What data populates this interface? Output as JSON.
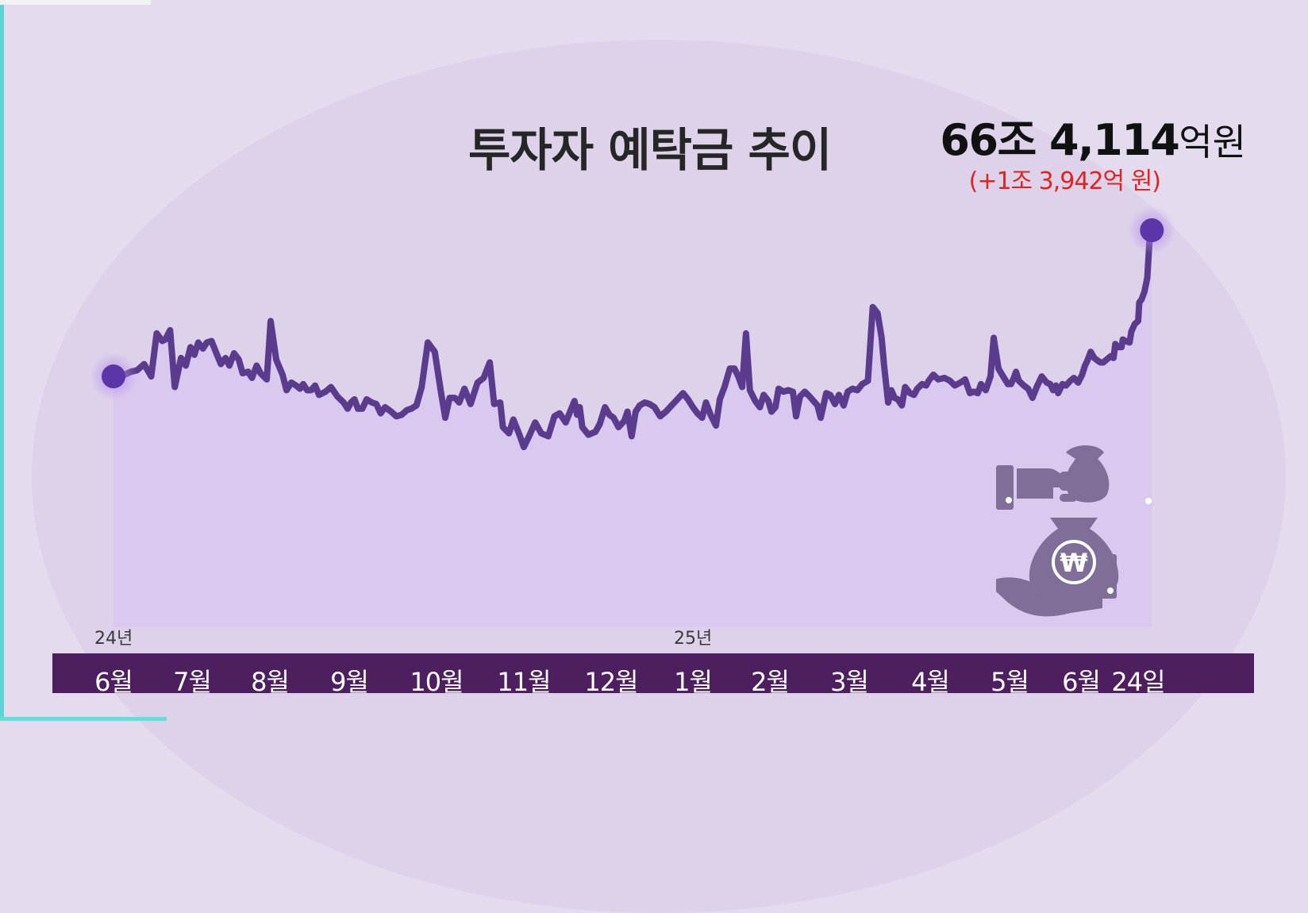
{
  "chart_data": {
    "type": "line",
    "title": "투자자 예탁금 추이",
    "latest_value": {
      "amount": "66조 4,114",
      "unit": "억원",
      "change": "(+1조 3,942억 원)"
    },
    "year_labels": [
      {
        "label": "24년",
        "month_index": 0
      },
      {
        "label": "25년",
        "month_index": 7
      }
    ],
    "months": [
      "6월",
      "7월",
      "8월",
      "9월",
      "10월",
      "11월",
      "12월",
      "1월",
      "2월",
      "3월",
      "4월",
      "5월",
      "6월",
      "24일"
    ],
    "ylim": [
      0,
      100
    ],
    "y_values_note": "relative level, unlabeled axis",
    "series": [
      {
        "values": [
          [
            0.0,
            40.6
          ],
          [
            0.06,
            40.0
          ],
          [
            0.14,
            41.3
          ],
          [
            0.22,
            42.5
          ],
          [
            0.3,
            43.1
          ],
          [
            0.39,
            45.6
          ],
          [
            0.48,
            40.6
          ],
          [
            0.55,
            58.1
          ],
          [
            0.62,
            55.0
          ],
          [
            0.66,
            55.6
          ],
          [
            0.72,
            59.4
          ],
          [
            0.78,
            36.3
          ],
          [
            0.86,
            48.1
          ],
          [
            0.92,
            45.0
          ],
          [
            0.98,
            52.5
          ],
          [
            1.03,
            49.4
          ],
          [
            1.08,
            54.4
          ],
          [
            1.14,
            51.9
          ],
          [
            1.19,
            54.4
          ],
          [
            1.25,
            55.0
          ],
          [
            1.32,
            49.4
          ],
          [
            1.37,
            45.6
          ],
          [
            1.43,
            48.1
          ],
          [
            1.48,
            45.0
          ],
          [
            1.54,
            50.0
          ],
          [
            1.6,
            47.5
          ],
          [
            1.65,
            41.9
          ],
          [
            1.72,
            42.5
          ],
          [
            1.77,
            40.0
          ],
          [
            1.83,
            45.0
          ],
          [
            1.88,
            41.9
          ],
          [
            1.96,
            39.4
          ],
          [
            2.01,
            63.1
          ],
          [
            2.08,
            47.5
          ],
          [
            2.16,
            41.3
          ],
          [
            2.21,
            35.0
          ],
          [
            2.27,
            38.1
          ],
          [
            2.33,
            36.9
          ],
          [
            2.38,
            35.6
          ],
          [
            2.42,
            37.5
          ],
          [
            2.47,
            35.0
          ],
          [
            2.52,
            35.0
          ],
          [
            2.57,
            36.9
          ],
          [
            2.62,
            33.1
          ],
          [
            2.7,
            34.4
          ],
          [
            2.77,
            36.3
          ],
          [
            2.85,
            32.5
          ],
          [
            2.93,
            30.0
          ],
          [
            2.98,
            27.5
          ],
          [
            3.02,
            30.0
          ],
          [
            3.06,
            31.3
          ],
          [
            3.1,
            27.5
          ],
          [
            3.15,
            27.5
          ],
          [
            3.2,
            31.3
          ],
          [
            3.26,
            30.0
          ],
          [
            3.31,
            29.4
          ],
          [
            3.36,
            25.6
          ],
          [
            3.41,
            28.1
          ],
          [
            3.48,
            26.3
          ],
          [
            3.54,
            24.4
          ],
          [
            3.6,
            25.0
          ],
          [
            3.66,
            26.9
          ],
          [
            3.71,
            27.5
          ],
          [
            3.77,
            28.8
          ],
          [
            3.83,
            36.3
          ],
          [
            3.9,
            54.4
          ],
          [
            3.98,
            50.6
          ],
          [
            4.05,
            34.4
          ],
          [
            4.1,
            23.8
          ],
          [
            4.15,
            31.9
          ],
          [
            4.21,
            31.9
          ],
          [
            4.26,
            30.0
          ],
          [
            4.32,
            35.6
          ],
          [
            4.39,
            29.4
          ],
          [
            4.47,
            38.1
          ],
          [
            4.54,
            40.0
          ],
          [
            4.61,
            46.3
          ],
          [
            4.66,
            29.4
          ],
          [
            4.73,
            30.0
          ],
          [
            4.76,
            20.0
          ],
          [
            4.83,
            17.5
          ],
          [
            4.88,
            23.1
          ],
          [
            4.95,
            16.9
          ],
          [
            5.0,
            11.9
          ],
          [
            5.06,
            16.3
          ],
          [
            5.13,
            21.9
          ],
          [
            5.2,
            17.5
          ],
          [
            5.28,
            16.3
          ],
          [
            5.35,
            24.4
          ],
          [
            5.41,
            25.6
          ],
          [
            5.48,
            21.9
          ],
          [
            5.53,
            26.3
          ],
          [
            5.58,
            30.6
          ],
          [
            5.61,
            25.0
          ],
          [
            5.64,
            28.1
          ],
          [
            5.67,
            20.0
          ],
          [
            5.74,
            16.9
          ],
          [
            5.82,
            18.1
          ],
          [
            5.87,
            21.3
          ],
          [
            5.93,
            28.1
          ],
          [
            5.98,
            25.0
          ],
          [
            6.03,
            23.8
          ],
          [
            6.09,
            20.0
          ],
          [
            6.16,
            22.5
          ],
          [
            6.2,
            26.3
          ],
          [
            6.25,
            16.3
          ],
          [
            6.3,
            26.3
          ],
          [
            6.35,
            28.8
          ],
          [
            6.41,
            30.0
          ],
          [
            6.47,
            29.4
          ],
          [
            6.53,
            28.1
          ],
          [
            6.6,
            24.4
          ],
          [
            6.67,
            26.3
          ],
          [
            6.74,
            28.8
          ],
          [
            6.81,
            31.3
          ],
          [
            6.88,
            33.8
          ],
          [
            6.94,
            31.3
          ],
          [
            7.0,
            28.1
          ],
          [
            7.06,
            25.6
          ],
          [
            7.12,
            23.8
          ],
          [
            7.17,
            30.0
          ],
          [
            7.23,
            25.0
          ],
          [
            7.3,
            20.6
          ],
          [
            7.35,
            31.3
          ],
          [
            7.41,
            36.3
          ],
          [
            7.48,
            43.8
          ],
          [
            7.54,
            43.8
          ],
          [
            7.59,
            40.6
          ],
          [
            7.64,
            36.3
          ],
          [
            7.69,
            58.1
          ],
          [
            7.74,
            35.0
          ],
          [
            7.81,
            30.6
          ],
          [
            7.87,
            28.1
          ],
          [
            7.92,
            33.1
          ],
          [
            7.98,
            30.6
          ],
          [
            8.02,
            26.3
          ],
          [
            8.07,
            28.1
          ],
          [
            8.11,
            35.6
          ],
          [
            8.17,
            34.4
          ],
          [
            8.23,
            35.0
          ],
          [
            8.29,
            34.4
          ],
          [
            8.33,
            24.4
          ],
          [
            8.38,
            32.5
          ],
          [
            8.44,
            34.4
          ],
          [
            8.5,
            32.5
          ],
          [
            8.55,
            30.6
          ],
          [
            8.6,
            28.8
          ],
          [
            8.64,
            23.8
          ],
          [
            8.71,
            33.8
          ],
          [
            8.76,
            33.1
          ],
          [
            8.82,
            29.4
          ],
          [
            8.87,
            33.1
          ],
          [
            8.93,
            28.8
          ],
          [
            8.98,
            34.4
          ],
          [
            9.04,
            35.6
          ],
          [
            9.1,
            35.0
          ],
          [
            9.16,
            37.5
          ],
          [
            9.23,
            38.8
          ],
          [
            9.29,
            68.8
          ],
          [
            9.35,
            66.3
          ],
          [
            9.4,
            56.3
          ],
          [
            9.43,
            45.0
          ],
          [
            9.48,
            30.0
          ],
          [
            9.52,
            35.0
          ],
          [
            9.56,
            31.9
          ],
          [
            9.6,
            31.3
          ],
          [
            9.65,
            28.8
          ],
          [
            9.69,
            36.3
          ],
          [
            9.75,
            33.8
          ],
          [
            9.8,
            33.1
          ],
          [
            9.84,
            35.6
          ],
          [
            9.9,
            37.5
          ],
          [
            9.95,
            36.9
          ],
          [
            9.98,
            38.8
          ],
          [
            10.04,
            41.3
          ],
          [
            10.1,
            39.4
          ],
          [
            10.18,
            40.0
          ],
          [
            10.25,
            38.8
          ],
          [
            10.31,
            36.9
          ],
          [
            10.38,
            38.1
          ],
          [
            10.44,
            39.4
          ],
          [
            10.5,
            33.8
          ],
          [
            10.55,
            34.4
          ],
          [
            10.6,
            33.8
          ],
          [
            10.64,
            37.5
          ],
          [
            10.7,
            35.0
          ],
          [
            10.76,
            40.6
          ],
          [
            10.8,
            56.3
          ],
          [
            10.86,
            43.8
          ],
          [
            10.93,
            40.0
          ],
          [
            10.98,
            37.5
          ],
          [
            11.02,
            37.5
          ],
          [
            11.06,
            40.0
          ],
          [
            11.09,
            42.5
          ],
          [
            11.13,
            38.8
          ],
          [
            11.2,
            36.9
          ],
          [
            11.26,
            35.6
          ],
          [
            11.32,
            31.9
          ],
          [
            11.38,
            36.3
          ],
          [
            11.45,
            40.6
          ],
          [
            11.52,
            38.1
          ],
          [
            11.57,
            37.5
          ],
          [
            11.61,
            35.0
          ],
          [
            11.65,
            36.9
          ],
          [
            11.68,
            33.8
          ],
          [
            11.74,
            37.5
          ],
          [
            11.79,
            36.9
          ],
          [
            11.85,
            38.8
          ],
          [
            11.9,
            40.0
          ],
          [
            11.96,
            38.1
          ],
          [
            12.02,
            41.3
          ],
          [
            12.07,
            45.0
          ],
          [
            12.11,
            46.9
          ],
          [
            12.17,
            50.6
          ],
          [
            12.23,
            48.1
          ],
          [
            12.3,
            46.9
          ],
          [
            12.34,
            46.3
          ],
          [
            12.39,
            46.3
          ],
          [
            12.45,
            47.5
          ],
          [
            12.52,
            48.8
          ],
          [
            12.57,
            48.1
          ],
          [
            12.6,
            53.8
          ],
          [
            12.64,
            52.5
          ],
          [
            12.71,
            52.5
          ],
          [
            12.73,
            55.6
          ],
          [
            12.78,
            55.0
          ],
          [
            12.85,
            54.4
          ],
          [
            12.88,
            58.8
          ],
          [
            12.94,
            61.9
          ],
          [
            13.0,
            63.1
          ],
          [
            13.02,
            70.6
          ],
          [
            13.06,
            71.9
          ],
          [
            13.11,
            75.0
          ],
          [
            13.16,
            80.6
          ],
          [
            13.2,
            96.3
          ],
          [
            13.24,
            100.0
          ]
        ]
      }
    ]
  },
  "icon": {
    "name": "money-bag-exchange-icon",
    "symbol": "₩",
    "color": "#7e6e98"
  },
  "colors": {
    "line": "#5b3b8e",
    "fill": "#d9c8ee",
    "axis_band": "#4e1f5e",
    "marker": "#5a36a8",
    "change": "#e0231f"
  }
}
